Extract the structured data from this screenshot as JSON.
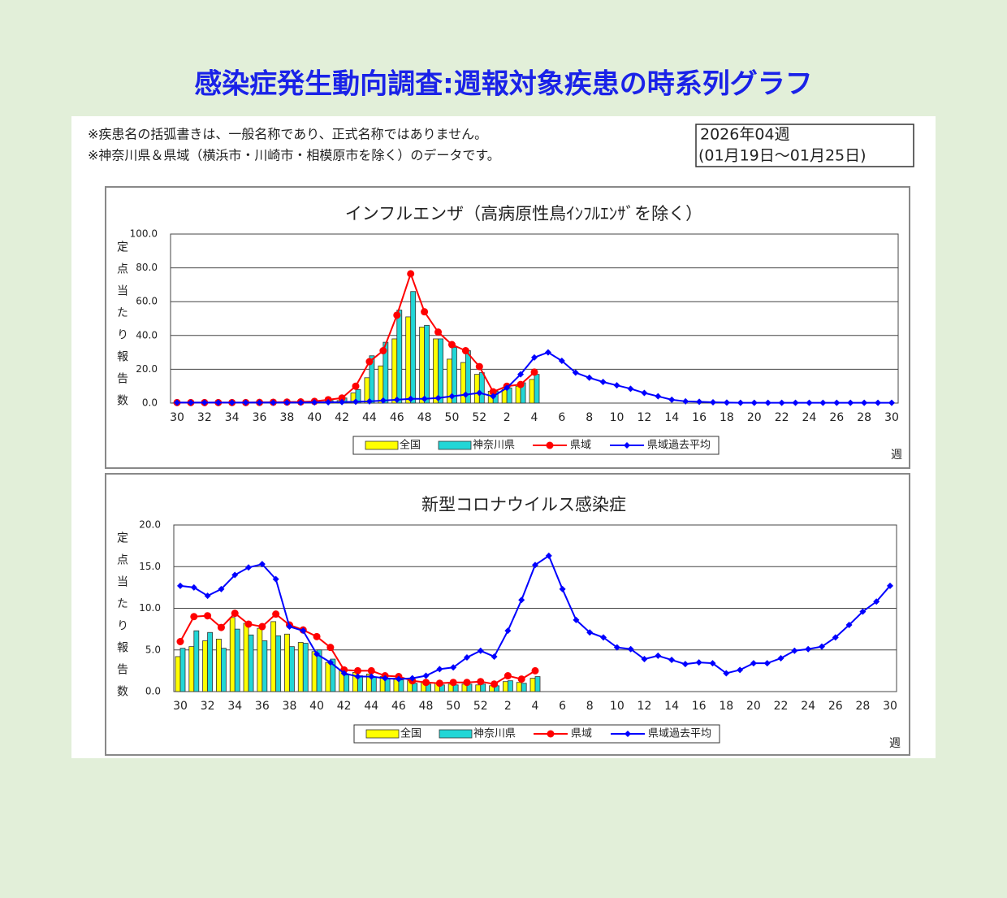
{
  "header": {
    "title": "感染症発生動向調査:週報対象疾患の時系列グラフ",
    "notes": [
      "※疾患名の括弧書きは、一般名称であり、正式名称ではありません。",
      "※神奈川県＆県域（横浜市・川崎市・相模原市を除く）のデータです。"
    ],
    "period": [
      "2026年04週",
      "(01月19日～01月25日)"
    ]
  },
  "chart_data": [
    {
      "type": "combo",
      "title": "インフルエンザ（高病原性鳥ｲﾝﾌﾙｴﾝｻﾞを除く）",
      "y_label": "定点当たり報告数",
      "x_label": "週",
      "categories": [
        "30",
        null,
        "32",
        null,
        "34",
        null,
        "36",
        null,
        "38",
        null,
        "40",
        null,
        "42",
        null,
        "44",
        null,
        "46",
        null,
        "48",
        null,
        "50",
        null,
        "52",
        null,
        "2",
        null,
        "4",
        null,
        "6",
        null,
        "8",
        null,
        "10",
        null,
        "12",
        null,
        "14",
        null,
        "16",
        null,
        "18",
        null,
        "20",
        null,
        "22",
        null,
        "24",
        null,
        "26",
        null,
        "28",
        null,
        "30"
      ],
      "ylim": [
        0,
        100
      ],
      "yticks": [
        {
          "value": 0,
          "label": "0.0"
        },
        {
          "value": 20,
          "label": "20.0"
        },
        {
          "value": 40,
          "label": "40.0"
        },
        {
          "value": 60,
          "label": "60.0"
        },
        {
          "value": 80,
          "label": "80.0"
        },
        {
          "value": 100,
          "label": "100.0"
        }
      ],
      "grid": true,
      "legend": "bottom",
      "series": [
        {
          "name": "全国",
          "type": "bar",
          "color": "#ffff00",
          "values": [
            0.1,
            0.1,
            0.1,
            0.1,
            0.1,
            0.1,
            0.1,
            0.2,
            0.2,
            0.3,
            0.5,
            0.8,
            1.5,
            6,
            15,
            22,
            38,
            51,
            45,
            38,
            26,
            24,
            17,
            7,
            9,
            10,
            14,
            null,
            null,
            null,
            null,
            null,
            null,
            null,
            null,
            null,
            null,
            null,
            null,
            null,
            null,
            null,
            null,
            null,
            null,
            null,
            null,
            null,
            null,
            null,
            null,
            null,
            null
          ]
        },
        {
          "name": "神奈川県",
          "type": "bar",
          "color": "#22d6d6",
          "values": [
            0.2,
            0.2,
            0.2,
            0.2,
            0.2,
            0.2,
            0.2,
            0.3,
            0.3,
            0.4,
            0.8,
            1.5,
            3,
            8,
            28,
            36,
            55,
            66,
            46,
            38,
            33,
            31,
            18,
            7,
            9,
            12,
            17,
            null,
            null,
            null,
            null,
            null,
            null,
            null,
            null,
            null,
            null,
            null,
            null,
            null,
            null,
            null,
            null,
            null,
            null,
            null,
            null,
            null,
            null,
            null,
            null,
            null,
            null
          ]
        },
        {
          "name": "県域",
          "type": "line",
          "marker": "circle",
          "color": "#ff0000",
          "values": [
            0.3,
            0.3,
            0.3,
            0.3,
            0.3,
            0.3,
            0.4,
            0.5,
            0.6,
            0.7,
            1,
            2,
            3,
            10,
            24.5,
            31,
            52,
            76.5,
            54,
            42,
            34.6,
            31,
            21.6,
            6.7,
            10,
            11,
            18.3,
            null,
            null,
            null,
            null,
            null,
            null,
            null,
            null,
            null,
            null,
            null,
            null,
            null,
            null,
            null,
            null,
            null,
            null,
            null,
            null,
            null,
            null,
            null,
            null,
            null,
            null
          ]
        },
        {
          "name": "県域過去平均",
          "type": "line",
          "marker": "diamond",
          "color": "#0000ff",
          "values": [
            0.3,
            0.3,
            0.3,
            0.3,
            0.3,
            0.3,
            0.3,
            0.3,
            0.3,
            0.3,
            0.4,
            0.5,
            0.6,
            0.8,
            1,
            1.5,
            2,
            2.5,
            2.5,
            3,
            4,
            5,
            6,
            4,
            9,
            17,
            27,
            30,
            25,
            18,
            15,
            12.5,
            10.5,
            8.5,
            6,
            4,
            2,
            1,
            0.8,
            0.5,
            0.3,
            0.2,
            0.2,
            0.2,
            0.2,
            0.2,
            0.2,
            0.2,
            0.2,
            0.2,
            0.2,
            0.2,
            0.2
          ]
        }
      ]
    },
    {
      "type": "combo",
      "title": "新型コロナウイルス感染症",
      "y_label": "定点当たり報告数",
      "x_label": "週",
      "categories": [
        "30",
        null,
        "32",
        null,
        "34",
        null,
        "36",
        null,
        "38",
        null,
        "40",
        null,
        "42",
        null,
        "44",
        null,
        "46",
        null,
        "48",
        null,
        "50",
        null,
        "52",
        null,
        "2",
        null,
        "4",
        null,
        "6",
        null,
        "8",
        null,
        "10",
        null,
        "12",
        null,
        "14",
        null,
        "16",
        null,
        "18",
        null,
        "20",
        null,
        "22",
        null,
        "24",
        null,
        "26",
        null,
        "28",
        null,
        "30"
      ],
      "ylim": [
        0,
        20
      ],
      "yticks": [
        {
          "value": 0,
          "label": "0.0"
        },
        {
          "value": 5,
          "label": "5.0"
        },
        {
          "value": 10,
          "label": "10.0"
        },
        {
          "value": 15,
          "label": "15.0"
        },
        {
          "value": 20,
          "label": "20.0"
        }
      ],
      "grid": true,
      "legend": "bottom",
      "series": [
        {
          "name": "全国",
          "type": "bar",
          "color": "#ffff00",
          "values": [
            4.2,
            5.4,
            6.1,
            6.3,
            8.9,
            8.2,
            7.6,
            8.4,
            6.9,
            5.9,
            4.8,
            3.5,
            2.6,
            2.3,
            2.1,
            1.8,
            1.6,
            1.3,
            1.1,
            1,
            0.9,
            0.9,
            0.8,
            0.7,
            1.2,
            1.1,
            1.6,
            null,
            null,
            null,
            null,
            null,
            null,
            null,
            null,
            null,
            null,
            null,
            null,
            null,
            null,
            null,
            null,
            null,
            null,
            null,
            null,
            null,
            null,
            null,
            null,
            null,
            null
          ]
        },
        {
          "name": "神奈川県",
          "type": "bar",
          "color": "#22d6d6",
          "values": [
            5.2,
            7.3,
            7.1,
            5.2,
            7.5,
            6.8,
            6.1,
            6.7,
            5.4,
            5.8,
            5,
            3.9,
            2,
            1.9,
            1.7,
            1.6,
            1.4,
            1,
            0.9,
            0.8,
            0.8,
            0.9,
            0.9,
            0.7,
            1.3,
            1,
            1.8,
            null,
            null,
            null,
            null,
            null,
            null,
            null,
            null,
            null,
            null,
            null,
            null,
            null,
            null,
            null,
            null,
            null,
            null,
            null,
            null,
            null,
            null,
            null,
            null,
            null,
            null
          ]
        },
        {
          "name": "県域",
          "type": "line",
          "marker": "circle",
          "color": "#ff0000",
          "values": [
            6,
            9,
            9.1,
            7.7,
            9.4,
            8.1,
            7.8,
            9.3,
            8,
            7.4,
            6.6,
            5.3,
            2.6,
            2.5,
            2.5,
            1.9,
            1.8,
            1.3,
            1.1,
            1,
            1.1,
            1.1,
            1.2,
            0.9,
            1.9,
            1.5,
            2.5,
            null,
            null,
            null,
            null,
            null,
            null,
            null,
            null,
            null,
            null,
            null,
            null,
            null,
            null,
            null,
            null,
            null,
            null,
            null,
            null,
            null,
            null,
            null,
            null,
            null,
            null
          ]
        },
        {
          "name": "県域過去平均",
          "type": "line",
          "marker": "diamond",
          "color": "#0000ff",
          "values": [
            12.7,
            12.5,
            11.5,
            12.3,
            14,
            14.9,
            15.3,
            13.5,
            7.8,
            7.3,
            4.5,
            3.5,
            2.2,
            1.8,
            1.8,
            1.6,
            1.5,
            1.6,
            1.9,
            2.7,
            2.9,
            4.1,
            4.9,
            4.2,
            7.3,
            11,
            15.2,
            16.3,
            12.3,
            8.6,
            7.1,
            6.5,
            5.3,
            5.1,
            3.9,
            4.3,
            3.8,
            3.3,
            3.5,
            3.4,
            2.2,
            2.6,
            3.4,
            3.4,
            4,
            4.9,
            5.1,
            5.4,
            6.5,
            8,
            9.6,
            10.8,
            12.7
          ]
        }
      ]
    }
  ]
}
